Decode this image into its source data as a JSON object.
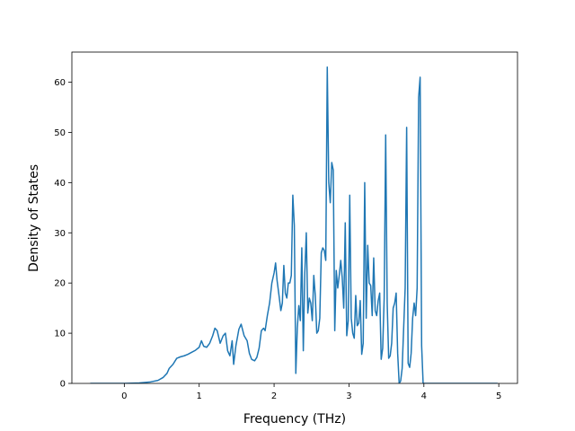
{
  "chart_data": {
    "type": "line",
    "title": "",
    "xlabel": "Frequency (THz)",
    "ylabel": "Density of States",
    "xlim": [
      -0.7,
      5.25
    ],
    "ylim": [
      0,
      66
    ],
    "xticks": [
      0,
      1,
      2,
      3,
      4,
      5
    ],
    "yticks": [
      0,
      10,
      20,
      30,
      40,
      50,
      60
    ],
    "grid": false,
    "legend": "none",
    "series": [
      {
        "color": "#1f77b4",
        "points": [
          [
            -0.45,
            0.0
          ],
          [
            -0.2,
            0.0
          ],
          [
            0.0,
            0.0
          ],
          [
            0.2,
            0.1
          ],
          [
            0.35,
            0.3
          ],
          [
            0.45,
            0.6
          ],
          [
            0.52,
            1.2
          ],
          [
            0.57,
            2.0
          ],
          [
            0.6,
            3.0
          ],
          [
            0.65,
            3.8
          ],
          [
            0.7,
            5.0
          ],
          [
            0.75,
            5.3
          ],
          [
            0.8,
            5.5
          ],
          [
            0.85,
            5.8
          ],
          [
            0.9,
            6.2
          ],
          [
            0.95,
            6.6
          ],
          [
            1.0,
            7.2
          ],
          [
            1.03,
            8.5
          ],
          [
            1.06,
            7.4
          ],
          [
            1.1,
            7.2
          ],
          [
            1.14,
            8.0
          ],
          [
            1.18,
            9.5
          ],
          [
            1.21,
            11.0
          ],
          [
            1.24,
            10.5
          ],
          [
            1.28,
            8.0
          ],
          [
            1.32,
            9.5
          ],
          [
            1.35,
            10.0
          ],
          [
            1.38,
            6.5
          ],
          [
            1.41,
            5.5
          ],
          [
            1.44,
            8.5
          ],
          [
            1.46,
            3.8
          ],
          [
            1.49,
            7.5
          ],
          [
            1.53,
            10.8
          ],
          [
            1.56,
            11.8
          ],
          [
            1.6,
            9.5
          ],
          [
            1.64,
            8.5
          ],
          [
            1.67,
            6.0
          ],
          [
            1.7,
            4.8
          ],
          [
            1.74,
            4.5
          ],
          [
            1.77,
            5.2
          ],
          [
            1.8,
            7.0
          ],
          [
            1.83,
            10.5
          ],
          [
            1.86,
            11.0
          ],
          [
            1.88,
            10.5
          ],
          [
            1.91,
            13.5
          ],
          [
            1.94,
            16.0
          ],
          [
            1.97,
            20.0
          ],
          [
            2.0,
            22.0
          ],
          [
            2.02,
            24.0
          ],
          [
            2.04,
            20.5
          ],
          [
            2.07,
            17.0
          ],
          [
            2.09,
            14.5
          ],
          [
            2.11,
            16.0
          ],
          [
            2.13,
            23.5
          ],
          [
            2.15,
            18.0
          ],
          [
            2.17,
            17.0
          ],
          [
            2.19,
            20.0
          ],
          [
            2.21,
            20.0
          ],
          [
            2.23,
            21.5
          ],
          [
            2.25,
            37.5
          ],
          [
            2.27,
            31.5
          ],
          [
            2.29,
            2.0
          ],
          [
            2.31,
            11.0
          ],
          [
            2.33,
            15.5
          ],
          [
            2.35,
            12.5
          ],
          [
            2.37,
            27.0
          ],
          [
            2.39,
            6.5
          ],
          [
            2.41,
            22.0
          ],
          [
            2.43,
            30.0
          ],
          [
            2.45,
            14.0
          ],
          [
            2.47,
            17.0
          ],
          [
            2.49,
            16.0
          ],
          [
            2.51,
            12.5
          ],
          [
            2.53,
            21.5
          ],
          [
            2.55,
            17.5
          ],
          [
            2.57,
            10.0
          ],
          [
            2.59,
            10.5
          ],
          [
            2.61,
            13.0
          ],
          [
            2.63,
            26.0
          ],
          [
            2.65,
            27.0
          ],
          [
            2.67,
            26.5
          ],
          [
            2.69,
            24.5
          ],
          [
            2.71,
            63.0
          ],
          [
            2.73,
            40.0
          ],
          [
            2.75,
            36.0
          ],
          [
            2.77,
            44.0
          ],
          [
            2.79,
            42.5
          ],
          [
            2.81,
            10.5
          ],
          [
            2.83,
            22.5
          ],
          [
            2.85,
            19.0
          ],
          [
            2.87,
            21.5
          ],
          [
            2.89,
            24.5
          ],
          [
            2.91,
            21.0
          ],
          [
            2.93,
            15.0
          ],
          [
            2.95,
            32.0
          ],
          [
            2.97,
            9.5
          ],
          [
            2.99,
            12.5
          ],
          [
            3.01,
            37.5
          ],
          [
            3.03,
            13.0
          ],
          [
            3.05,
            10.0
          ],
          [
            3.07,
            9.0
          ],
          [
            3.09,
            17.5
          ],
          [
            3.11,
            11.5
          ],
          [
            3.13,
            12.0
          ],
          [
            3.15,
            16.5
          ],
          [
            3.17,
            5.8
          ],
          [
            3.19,
            8.0
          ],
          [
            3.21,
            40.0
          ],
          [
            3.23,
            13.0
          ],
          [
            3.25,
            27.5
          ],
          [
            3.27,
            20.0
          ],
          [
            3.29,
            19.5
          ],
          [
            3.31,
            13.5
          ],
          [
            3.33,
            25.0
          ],
          [
            3.35,
            14.5
          ],
          [
            3.37,
            13.5
          ],
          [
            3.39,
            16.5
          ],
          [
            3.41,
            18.0
          ],
          [
            3.43,
            4.8
          ],
          [
            3.45,
            7.0
          ],
          [
            3.47,
            17.0
          ],
          [
            3.49,
            49.5
          ],
          [
            3.51,
            16.0
          ],
          [
            3.53,
            5.0
          ],
          [
            3.55,
            5.5
          ],
          [
            3.57,
            8.0
          ],
          [
            3.59,
            15.0
          ],
          [
            3.61,
            16.0
          ],
          [
            3.63,
            18.0
          ],
          [
            3.65,
            6.0
          ],
          [
            3.67,
            0.0
          ],
          [
            3.69,
            0.5
          ],
          [
            3.71,
            3.0
          ],
          [
            3.73,
            11.0
          ],
          [
            3.75,
            19.0
          ],
          [
            3.77,
            51.0
          ],
          [
            3.79,
            4.0
          ],
          [
            3.81,
            3.2
          ],
          [
            3.83,
            6.0
          ],
          [
            3.85,
            13.0
          ],
          [
            3.87,
            16.0
          ],
          [
            3.89,
            13.5
          ],
          [
            3.91,
            19.0
          ],
          [
            3.93,
            57.0
          ],
          [
            3.95,
            61.0
          ],
          [
            3.97,
            7.5
          ],
          [
            3.99,
            0.0
          ],
          [
            4.1,
            0.0
          ],
          [
            4.5,
            0.0
          ],
          [
            4.98,
            0.0
          ]
        ]
      }
    ]
  }
}
